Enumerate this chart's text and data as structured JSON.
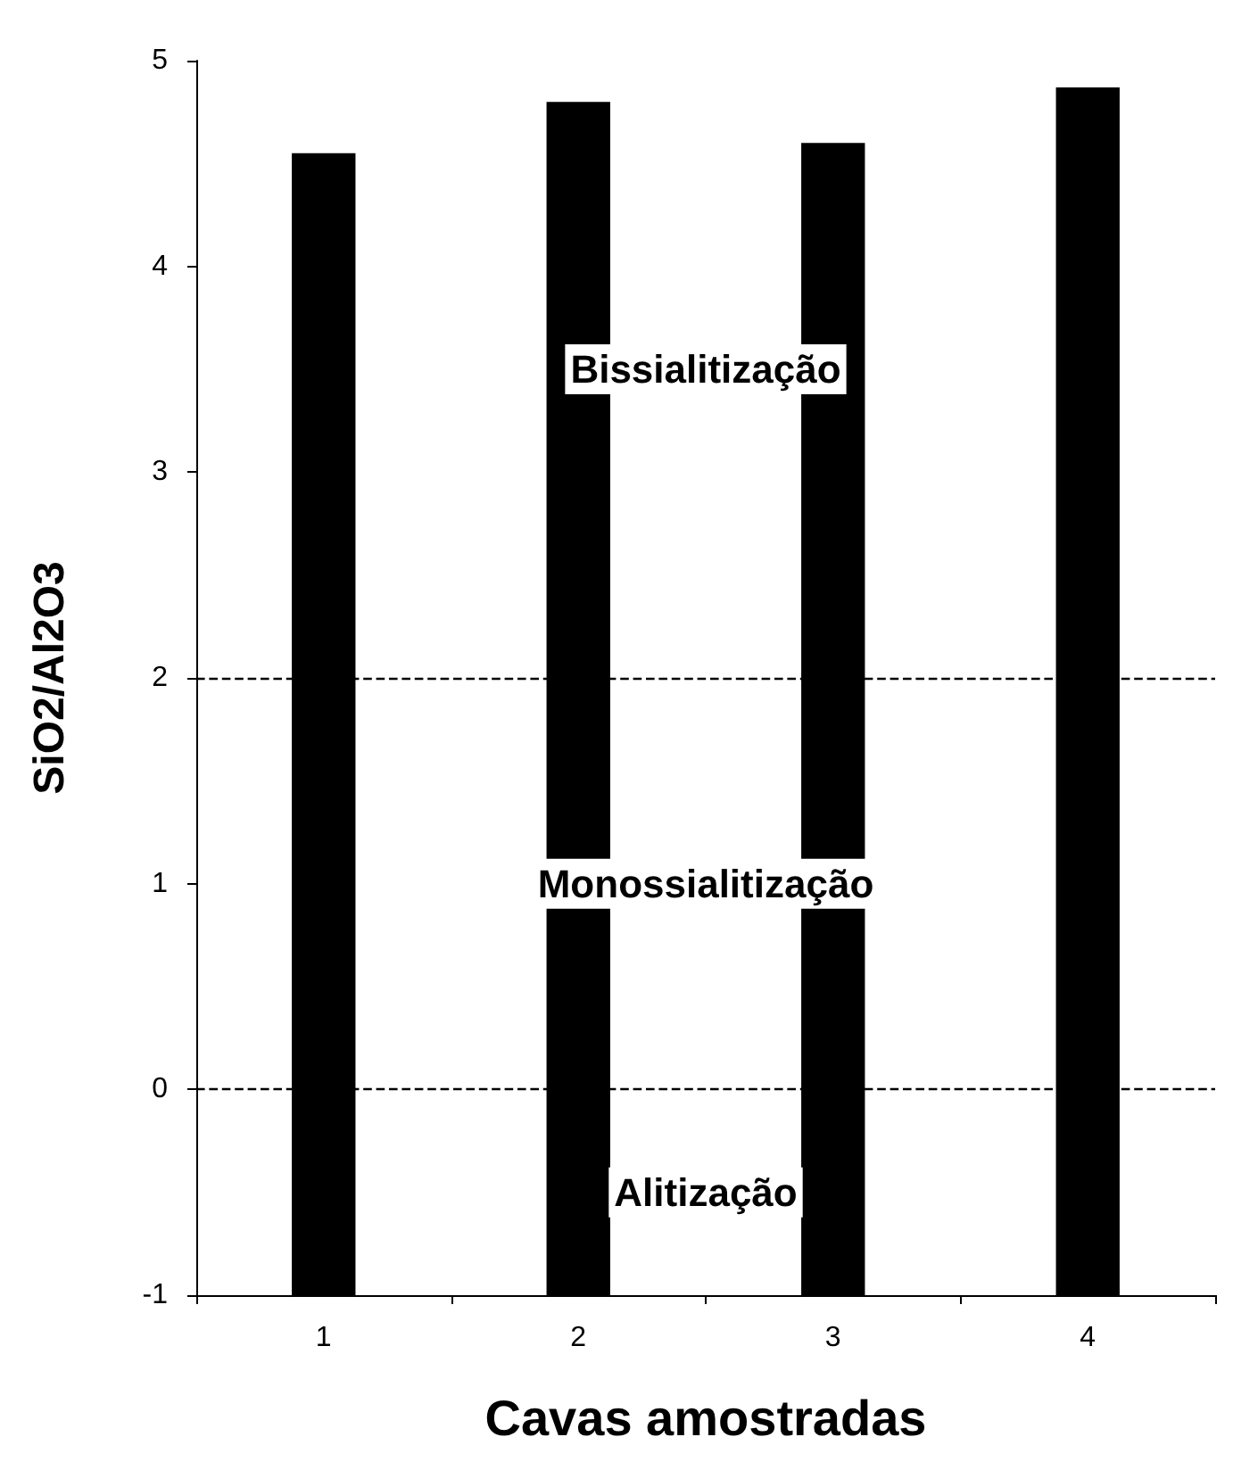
{
  "chart_data": {
    "type": "bar",
    "xlabel": "Cavas amostradas",
    "ylabel": "SiO2/Al2O3",
    "categories": [
      "1",
      "2",
      "3",
      "4"
    ],
    "base": [
      -1,
      -1,
      -1,
      -1
    ],
    "values": [
      5.55,
      5.8,
      5.6,
      5.87
    ],
    "color": "#000000",
    "ylim": [
      -1,
      5
    ],
    "yticks": [
      -1,
      0,
      1,
      2,
      3,
      4,
      5
    ],
    "ref_lines": [
      {
        "axis": "y",
        "value": 0,
        "line_style": "dashed",
        "color": "#000000"
      },
      {
        "axis": "y",
        "value": 2,
        "line_style": "dashed",
        "color": "#000000"
      }
    ],
    "annotations": [
      "Bissialitização",
      "Monossialitização",
      "Alitização"
    ]
  }
}
